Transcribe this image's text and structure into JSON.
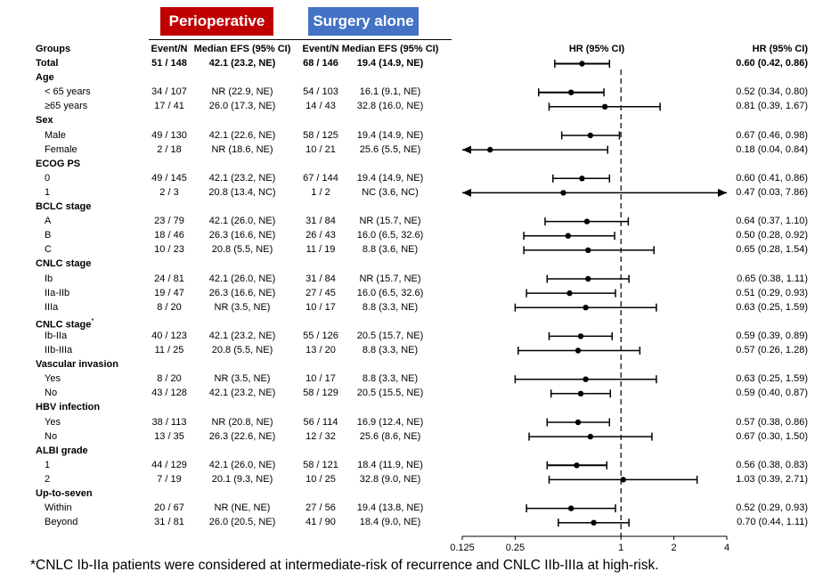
{
  "headers": {
    "perioperative": "Perioperative",
    "surgery_alone": "Surgery alone",
    "groups": "Groups",
    "event_n_1": "Event/N",
    "median_1": "Median EFS (95% CI)",
    "event_n_2": "Event/N",
    "median_2": "Median EFS (95% CI)",
    "hr_plot": "HR (95% CI)",
    "hr_text": "HR (95% CI)"
  },
  "colors": {
    "perioperative": "#c00000",
    "surgery_alone": "#4472c4"
  },
  "footnote": "*CNLC Ib-IIa patients were considered at intermediate-risk of recurrence and CNLC IIb-IIIa at high-risk.",
  "chart_data": {
    "type": "forest",
    "x_scale": "log2",
    "xlim": [
      0.125,
      4
    ],
    "xticks": [
      0.125,
      0.25,
      1,
      2,
      4
    ],
    "xtick_labels": [
      "0.125",
      "0.25",
      "1",
      "2",
      "4"
    ],
    "reference_line": 1,
    "rows": [
      {
        "label": "Total",
        "bold": true,
        "kind": "total",
        "en1": "51 / 148",
        "med1": "42.1 (23.2, NE)",
        "en2": "68 / 146",
        "med2": "19.4 (14.9, NE)",
        "hr": 0.6,
        "lo": 0.42,
        "hi": 0.86,
        "hr_text": "0.60 (0.42, 0.86)"
      },
      {
        "label": "Age",
        "kind": "section"
      },
      {
        "label": "< 65 years",
        "en1": "34 / 107",
        "med1": "NR (22.9, NE)",
        "en2": "54 / 103",
        "med2": "16.1 (9.1, NE)",
        "hr": 0.52,
        "lo": 0.34,
        "hi": 0.8,
        "hr_text": "0.52 (0.34, 0.80)",
        "thick": true
      },
      {
        "label": "≥65 years",
        "en1": "17 / 41",
        "med1": "26.0 (17.3, NE)",
        "en2": "14 / 43",
        "med2": "32.8 (16.0, NE)",
        "hr": 0.81,
        "lo": 0.39,
        "hi": 1.67,
        "hr_text": "0.81 (0.39, 1.67)"
      },
      {
        "label": "Sex",
        "kind": "section"
      },
      {
        "label": "Male",
        "en1": "49 / 130",
        "med1": "42.1 (22.6, NE)",
        "en2": "58 / 125",
        "med2": "19.4 (14.9, NE)",
        "hr": 0.67,
        "lo": 0.46,
        "hi": 0.98,
        "hr_text": "0.67 (0.46, 0.98)"
      },
      {
        "label": "Female",
        "en1": "2 / 18",
        "med1": "NR (18.6, NE)",
        "en2": "10 / 21",
        "med2": "25.6 (5.5, NE)",
        "hr": 0.18,
        "lo": 0.04,
        "hi": 0.84,
        "hr_text": "0.18 (0.04, 0.84)",
        "arrow_left": true
      },
      {
        "label": "ECOG PS",
        "kind": "section"
      },
      {
        "label": "0",
        "en1": "49 / 145",
        "med1": "42.1 (23.2, NE)",
        "en2": "67 / 144",
        "med2": "19.4 (14.9, NE)",
        "hr": 0.6,
        "lo": 0.41,
        "hi": 0.86,
        "hr_text": "0.60 (0.41, 0.86)"
      },
      {
        "label": "1",
        "en1": "2 / 3",
        "med1": "20.8 (13.4, NC)",
        "en2": "1 / 2",
        "med2": "NC (3.6, NC)",
        "hr": 0.47,
        "lo": 0.03,
        "hi": 7.86,
        "hr_text": "0.47 (0.03, 7.86)",
        "arrow_left": true,
        "arrow_right": true
      },
      {
        "label": "BCLC stage",
        "kind": "section"
      },
      {
        "label": "A",
        "en1": "23 / 79",
        "med1": "42.1 (26.0, NE)",
        "en2": "31 / 84",
        "med2": "NR (15.7, NE)",
        "hr": 0.64,
        "lo": 0.37,
        "hi": 1.1,
        "hr_text": "0.64 (0.37, 1.10)"
      },
      {
        "label": "B",
        "en1": "18 / 46",
        "med1": "26.3 (16.6, NE)",
        "en2": "26 / 43",
        "med2": "16.0 (6.5, 32.6)",
        "hr": 0.5,
        "lo": 0.28,
        "hi": 0.92,
        "hr_text": "0.50 (0.28, 0.92)"
      },
      {
        "label": "C",
        "en1": "10 / 23",
        "med1": "20.8 (5.5, NE)",
        "en2": "11 / 19",
        "med2": "8.8 (3.6, NE)",
        "hr": 0.65,
        "lo": 0.28,
        "hi": 1.54,
        "hr_text": "0.65 (0.28, 1.54)"
      },
      {
        "label": "CNLC stage",
        "kind": "section"
      },
      {
        "label": "Ib",
        "en1": "24 / 81",
        "med1": "42.1 (26.0, NE)",
        "en2": "31 / 84",
        "med2": "NR (15.7, NE)",
        "hr": 0.65,
        "lo": 0.38,
        "hi": 1.11,
        "hr_text": "0.65 (0.38, 1.11)"
      },
      {
        "label": "IIa-IIb",
        "en1": "19 / 47",
        "med1": "26.3 (16.6, NE)",
        "en2": "27 / 45",
        "med2": "16.0 (6.5, 32.6)",
        "hr": 0.51,
        "lo": 0.29,
        "hi": 0.93,
        "hr_text": "0.51 (0.29, 0.93)"
      },
      {
        "label": "IIIa",
        "en1": "8 / 20",
        "med1": "NR (3.5, NE)",
        "en2": "10 / 17",
        "med2": "8.8 (3.3, NE)",
        "hr": 0.63,
        "lo": 0.25,
        "hi": 1.59,
        "hr_text": "0.63 (0.25, 1.59)"
      },
      {
        "label": "CNLC stage",
        "kind": "section",
        "sup": "*"
      },
      {
        "label": "Ib-IIa",
        "en1": "40 / 123",
        "med1": "42.1 (23.2, NE)",
        "en2": "55 / 126",
        "med2": "20.5 (15.7, NE)",
        "hr": 0.59,
        "lo": 0.39,
        "hi": 0.89,
        "hr_text": "0.59 (0.39, 0.89)"
      },
      {
        "label": "IIb-IIIa",
        "en1": "11 / 25",
        "med1": "20.8 (5.5, NE)",
        "en2": "13 / 20",
        "med2": "8.8 (3.3, NE)",
        "hr": 0.57,
        "lo": 0.26,
        "hi": 1.28,
        "hr_text": "0.57 (0.26, 1.28)"
      },
      {
        "label": "Vascular invasion",
        "kind": "section"
      },
      {
        "label": "Yes",
        "en1": "8 / 20",
        "med1": "NR (3.5, NE)",
        "en2": "10 / 17",
        "med2": "8.8 (3.3, NE)",
        "hr": 0.63,
        "lo": 0.25,
        "hi": 1.59,
        "hr_text": "0.63 (0.25, 1.59)"
      },
      {
        "label": "No",
        "en1": "43 / 128",
        "med1": "42.1 (23.2, NE)",
        "en2": "58 / 129",
        "med2": "20.5 (15.5, NE)",
        "hr": 0.59,
        "lo": 0.4,
        "hi": 0.87,
        "hr_text": "0.59 (0.40, 0.87)"
      },
      {
        "label": "HBV infection",
        "kind": "section"
      },
      {
        "label": "Yes",
        "en1": "38 / 113",
        "med1": "NR (20.8, NE)",
        "en2": "56 / 114",
        "med2": "16.9 (12.4, NE)",
        "hr": 0.57,
        "lo": 0.38,
        "hi": 0.86,
        "hr_text": "0.57 (0.38, 0.86)"
      },
      {
        "label": "No",
        "en1": "13 / 35",
        "med1": "26.3 (22.6, NE)",
        "en2": "12 / 32",
        "med2": "25.6 (8.6, NE)",
        "hr": 0.67,
        "lo": 0.3,
        "hi": 1.5,
        "hr_text": "0.67 (0.30, 1.50)"
      },
      {
        "label": "ALBI grade",
        "kind": "section"
      },
      {
        "label": "1",
        "en1": "44 / 129",
        "med1": "42.1 (26.0, NE)",
        "en2": "58 / 121",
        "med2": "18.4 (11.9, NE)",
        "hr": 0.56,
        "lo": 0.38,
        "hi": 0.83,
        "hr_text": "0.56 (0.38, 0.83)",
        "thick": true
      },
      {
        "label": "2",
        "en1": "7 / 19",
        "med1": "20.1 (9.3, NE)",
        "en2": "10 / 25",
        "med2": "32.8 (9.0, NE)",
        "hr": 1.03,
        "lo": 0.39,
        "hi": 2.71,
        "hr_text": "1.03 (0.39, 2.71)"
      },
      {
        "label": "Up-to-seven",
        "kind": "section"
      },
      {
        "label": "Within",
        "en1": "20 / 67",
        "med1": "NR (NE, NE)",
        "en2": "27 / 56",
        "med2": "19.4 (13.8, NE)",
        "hr": 0.52,
        "lo": 0.29,
        "hi": 0.93,
        "hr_text": "0.52 (0.29, 0.93)"
      },
      {
        "label": "Beyond",
        "en1": "31 / 81",
        "med1": "26.0 (20.5, NE)",
        "en2": "41 / 90",
        "med2": "18.4 (9.0, NE)",
        "hr": 0.7,
        "lo": 0.44,
        "hi": 1.11,
        "hr_text": "0.70 (0.44, 1.11)"
      }
    ]
  }
}
